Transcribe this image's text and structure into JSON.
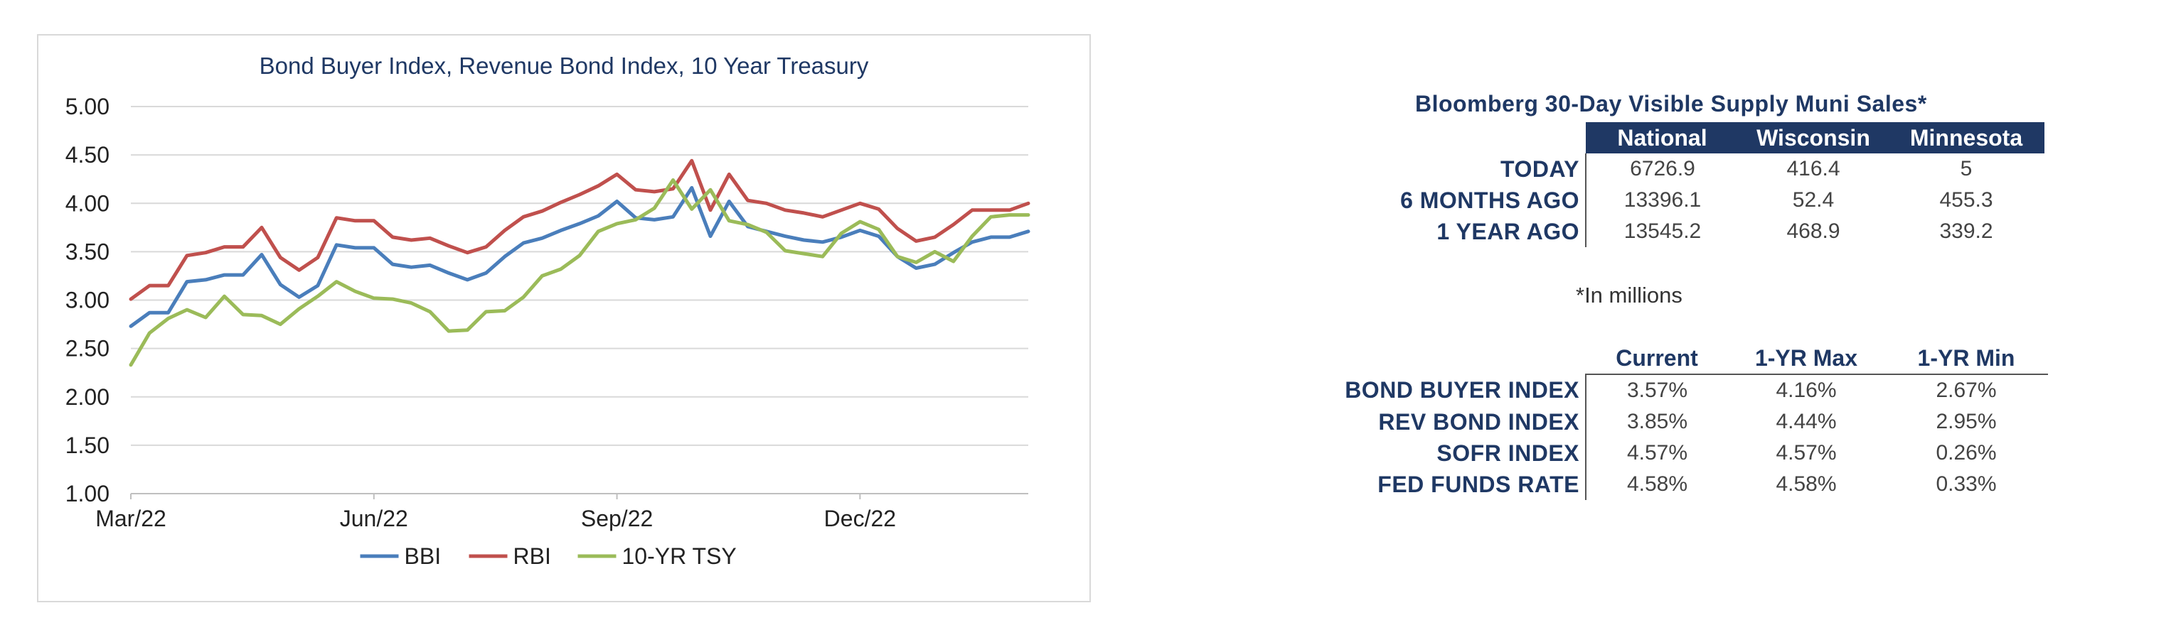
{
  "chart_data": {
    "type": "line",
    "title": "Bond Buyer Index, Revenue Bond Index, 10 Year Treasury",
    "ylim": [
      1.0,
      5.0
    ],
    "yticks": [
      "5.00",
      "4.50",
      "4.00",
      "3.50",
      "3.00",
      "2.50",
      "2.00",
      "1.50",
      "1.00"
    ],
    "xlim": [
      0,
      48
    ],
    "xticks": [
      {
        "label": "Mar/22",
        "x": 0
      },
      {
        "label": "Jun/22",
        "x": 13
      },
      {
        "label": "Sep/22",
        "x": 26
      },
      {
        "label": "Dec/22",
        "x": 39
      }
    ],
    "grid": true,
    "legend_position": "bottom",
    "series": [
      {
        "name": "BBI",
        "color": "#4a7ebb",
        "values": [
          2.73,
          2.87,
          2.87,
          3.19,
          3.21,
          3.26,
          3.26,
          3.47,
          3.16,
          3.03,
          3.15,
          3.57,
          3.54,
          3.54,
          3.37,
          3.34,
          3.36,
          3.28,
          3.21,
          3.28,
          3.45,
          3.59,
          3.64,
          3.72,
          3.79,
          3.87,
          4.02,
          3.85,
          3.83,
          3.86,
          4.16,
          3.66,
          4.02,
          3.76,
          3.71,
          3.66,
          3.62,
          3.6,
          3.65,
          3.72,
          3.66,
          3.45,
          3.33,
          3.37,
          3.49,
          3.6,
          3.65,
          3.65,
          3.71
        ]
      },
      {
        "name": "RBI",
        "color": "#c0504d",
        "values": [
          3.01,
          3.15,
          3.15,
          3.46,
          3.49,
          3.55,
          3.55,
          3.75,
          3.44,
          3.31,
          3.44,
          3.85,
          3.82,
          3.82,
          3.65,
          3.62,
          3.64,
          3.56,
          3.49,
          3.55,
          3.72,
          3.86,
          3.92,
          4.01,
          4.09,
          4.18,
          4.3,
          4.14,
          4.12,
          4.15,
          4.44,
          3.93,
          4.3,
          4.03,
          4.0,
          3.93,
          3.9,
          3.86,
          3.93,
          4.0,
          3.94,
          3.74,
          3.61,
          3.65,
          3.78,
          3.93,
          3.93,
          3.93,
          4.0
        ]
      },
      {
        "name": "10-YR TSY",
        "color": "#9bbb59",
        "values": [
          2.33,
          2.66,
          2.81,
          2.9,
          2.82,
          3.04,
          2.85,
          2.84,
          2.75,
          2.91,
          3.04,
          3.19,
          3.09,
          3.02,
          3.01,
          2.97,
          2.88,
          2.68,
          2.69,
          2.88,
          2.89,
          3.03,
          3.25,
          3.32,
          3.46,
          3.71,
          3.79,
          3.83,
          3.95,
          4.24,
          3.94,
          4.14,
          3.82,
          3.78,
          3.7,
          3.51,
          3.48,
          3.45,
          3.69,
          3.81,
          3.73,
          3.45,
          3.39,
          3.5,
          3.4,
          3.66,
          3.86,
          3.88,
          3.88
        ]
      }
    ]
  },
  "supply": {
    "title": "Bloomberg 30-Day Visible Supply Muni Sales*",
    "columns": [
      "National",
      "Wisconsin",
      "Minnesota"
    ],
    "rows": [
      {
        "label": "TODAY",
        "values": [
          "6726.9",
          "416.4",
          "5"
        ]
      },
      {
        "label": "6 MONTHS AGO",
        "values": [
          "13396.1",
          "52.4",
          "455.3"
        ]
      },
      {
        "label": "1 YEAR AGO",
        "values": [
          "13545.2",
          "468.9",
          "339.2"
        ]
      }
    ],
    "footnote": "*In millions"
  },
  "rates": {
    "columns": [
      "Current",
      "1-YR Max",
      "1-YR Min"
    ],
    "rows": [
      {
        "label": "BOND BUYER INDEX",
        "values": [
          "3.57%",
          "4.16%",
          "2.67%"
        ]
      },
      {
        "label": "REV BOND INDEX",
        "values": [
          "3.85%",
          "4.44%",
          "2.95%"
        ]
      },
      {
        "label": "SOFR INDEX",
        "values": [
          "4.57%",
          "4.57%",
          "0.26%"
        ]
      },
      {
        "label": "FED FUNDS RATE",
        "values": [
          "4.58%",
          "4.58%",
          "0.33%"
        ]
      }
    ]
  }
}
